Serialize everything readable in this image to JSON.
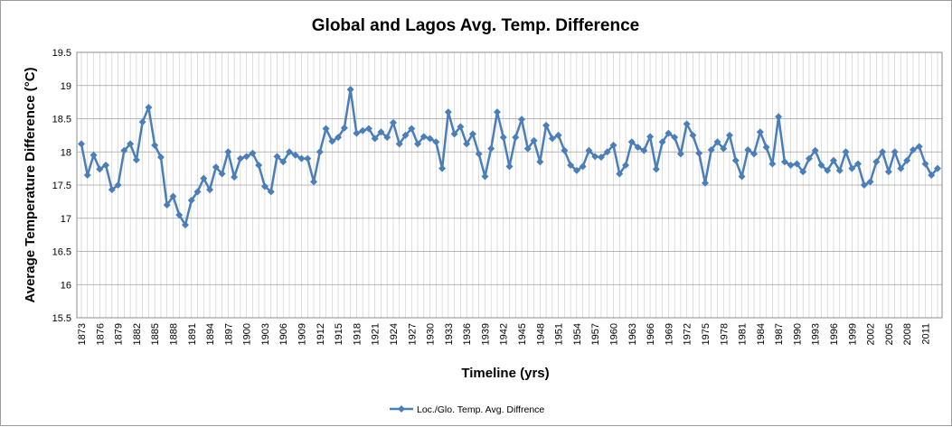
{
  "chart_data": {
    "type": "line",
    "title": "Global and  Lagos Avg. Temp. Difference",
    "xlabel": "Timeline (yrs)",
    "ylabel": "Average Temperature Difference (°C)",
    "ylim": [
      15.5,
      19.5
    ],
    "yticks": [
      "15.5",
      "16",
      "16.5",
      "17",
      "17.5",
      "18",
      "18.5",
      "19",
      "19.5"
    ],
    "xlim": [
      1873,
      2013
    ],
    "xticks": [
      "1873",
      "1876",
      "1879",
      "1882",
      "1885",
      "1888",
      "1891",
      "1894",
      "1897",
      "1900",
      "1903",
      "1906",
      "1909",
      "1912",
      "1915",
      "1918",
      "1921",
      "1924",
      "1927",
      "1930",
      "1933",
      "1936",
      "1939",
      "1942",
      "1945",
      "1948",
      "1951",
      "1954",
      "1957",
      "1960",
      "1963",
      "1966",
      "1969",
      "1972",
      "1975",
      "1978",
      "1981",
      "1984",
      "1987",
      "1990",
      "1993",
      "1996",
      "1999",
      "2002",
      "2005",
      "2008",
      "2011"
    ],
    "grid": "vertical and horizontal",
    "legend": "bottom",
    "color": "#4a7ebb",
    "series": [
      {
        "name": "Loc./Glo. Temp. Avg. Diffrence",
        "x": [
          1873,
          1874,
          1875,
          1876,
          1877,
          1878,
          1879,
          1880,
          1881,
          1882,
          1883,
          1884,
          1885,
          1886,
          1887,
          1888,
          1889,
          1890,
          1891,
          1892,
          1893,
          1894,
          1895,
          1896,
          1897,
          1898,
          1899,
          1900,
          1901,
          1902,
          1903,
          1904,
          1905,
          1906,
          1907,
          1908,
          1909,
          1910,
          1911,
          1912,
          1913,
          1914,
          1915,
          1916,
          1917,
          1918,
          1919,
          1920,
          1921,
          1922,
          1923,
          1924,
          1925,
          1926,
          1927,
          1928,
          1929,
          1930,
          1931,
          1932,
          1933,
          1934,
          1935,
          1936,
          1937,
          1938,
          1939,
          1940,
          1941,
          1942,
          1943,
          1944,
          1945,
          1946,
          1947,
          1948,
          1949,
          1950,
          1951,
          1952,
          1953,
          1954,
          1955,
          1956,
          1957,
          1958,
          1959,
          1960,
          1961,
          1962,
          1963,
          1964,
          1965,
          1966,
          1967,
          1968,
          1969,
          1970,
          1971,
          1972,
          1973,
          1974,
          1975,
          1976,
          1977,
          1978,
          1979,
          1980,
          1981,
          1982,
          1983,
          1984,
          1985,
          1986,
          1987,
          1988,
          1989,
          1990,
          1991,
          1992,
          1993,
          1994,
          1995,
          1996,
          1997,
          1998,
          1999,
          2000,
          2001,
          2002,
          2003,
          2004,
          2005,
          2006,
          2007,
          2008,
          2009,
          2010,
          2011,
          2012,
          2013
        ],
        "values": [
          18.12,
          17.65,
          17.95,
          17.74,
          17.8,
          17.43,
          17.5,
          18.02,
          18.12,
          17.88,
          18.45,
          18.67,
          18.1,
          17.92,
          17.2,
          17.33,
          17.05,
          16.9,
          17.27,
          17.4,
          17.6,
          17.43,
          17.77,
          17.67,
          18.0,
          17.62,
          17.9,
          17.93,
          17.98,
          17.8,
          17.48,
          17.4,
          17.93,
          17.85,
          18.0,
          17.95,
          17.9,
          17.9,
          17.55,
          18.0,
          18.35,
          18.16,
          18.22,
          18.36,
          18.94,
          18.28,
          18.32,
          18.35,
          18.2,
          18.3,
          18.22,
          18.44,
          18.12,
          18.25,
          18.35,
          18.12,
          18.23,
          18.2,
          18.15,
          17.75,
          18.6,
          18.27,
          18.38,
          18.12,
          18.27,
          17.97,
          17.63,
          18.05,
          18.6,
          18.22,
          17.78,
          18.22,
          18.49,
          18.05,
          18.17,
          17.85,
          18.4,
          18.2,
          18.25,
          18.02,
          17.8,
          17.72,
          17.78,
          18.02,
          17.93,
          17.92,
          18.0,
          18.1,
          17.67,
          17.8,
          18.15,
          18.07,
          18.02,
          18.23,
          17.74,
          18.15,
          18.28,
          18.22,
          17.97,
          18.42,
          18.25,
          17.98,
          17.53,
          18.03,
          18.15,
          18.05,
          18.25,
          17.87,
          17.63,
          18.03,
          17.97,
          18.3,
          18.07,
          17.82,
          18.53,
          17.85,
          17.8,
          17.82,
          17.7,
          17.9,
          18.02,
          17.8,
          17.72,
          17.87,
          17.72,
          18.0,
          17.75,
          17.82,
          17.5,
          17.55,
          17.85,
          18.0,
          17.7,
          18.0,
          17.75,
          17.87,
          18.03,
          18.08,
          17.82,
          17.65,
          17.75
        ]
      }
    ]
  }
}
